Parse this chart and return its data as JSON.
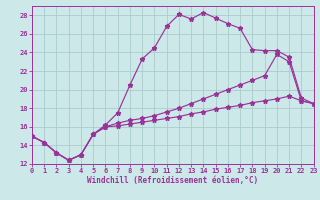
{
  "background_color": "#cce8e8",
  "grid_color": "#aacccc",
  "line_color": "#993399",
  "xlabel": "Windchill (Refroidissement éolien,°C)",
  "xlim": [
    0,
    23
  ],
  "ylim": [
    12,
    29
  ],
  "xticks": [
    0,
    1,
    2,
    3,
    4,
    5,
    6,
    7,
    8,
    9,
    10,
    11,
    12,
    13,
    14,
    15,
    16,
    17,
    18,
    19,
    20,
    21,
    22,
    23
  ],
  "yticks": [
    12,
    14,
    16,
    18,
    20,
    22,
    24,
    26,
    28
  ],
  "curve1_x": [
    0,
    1,
    2,
    3,
    4,
    5,
    6,
    7,
    8,
    9,
    10,
    11,
    12,
    13,
    14,
    15,
    16,
    17,
    18,
    19,
    20,
    21,
    22,
    23
  ],
  "curve1_y": [
    15.0,
    14.3,
    13.2,
    12.4,
    13.0,
    15.2,
    16.2,
    17.5,
    20.5,
    23.3,
    24.5,
    26.8,
    28.1,
    27.6,
    28.3,
    27.7,
    27.1,
    26.6,
    24.3,
    24.2,
    24.2,
    23.5,
    19.1,
    18.5
  ],
  "curve2_x": [
    0,
    1,
    2,
    3,
    4,
    5,
    6,
    7,
    8,
    9,
    10,
    11,
    12,
    13,
    14,
    15,
    16,
    17,
    18,
    19,
    20,
    21,
    22,
    23
  ],
  "curve2_y": [
    15.0,
    14.3,
    13.2,
    12.4,
    13.0,
    15.2,
    16.0,
    16.4,
    16.7,
    16.9,
    17.2,
    17.6,
    18.0,
    18.5,
    19.0,
    19.5,
    20.0,
    20.5,
    21.0,
    21.5,
    23.8,
    23.0,
    18.8,
    18.5
  ],
  "curve3_x": [
    0,
    1,
    2,
    3,
    4,
    5,
    6,
    7,
    8,
    9,
    10,
    11,
    12,
    13,
    14,
    15,
    16,
    17,
    18,
    19,
    20,
    21,
    22,
    23
  ],
  "curve3_y": [
    15.0,
    14.3,
    13.2,
    12.4,
    13.0,
    15.2,
    16.0,
    16.1,
    16.3,
    16.5,
    16.7,
    16.9,
    17.1,
    17.4,
    17.6,
    17.9,
    18.1,
    18.3,
    18.6,
    18.8,
    19.0,
    19.3,
    18.8,
    18.5
  ]
}
